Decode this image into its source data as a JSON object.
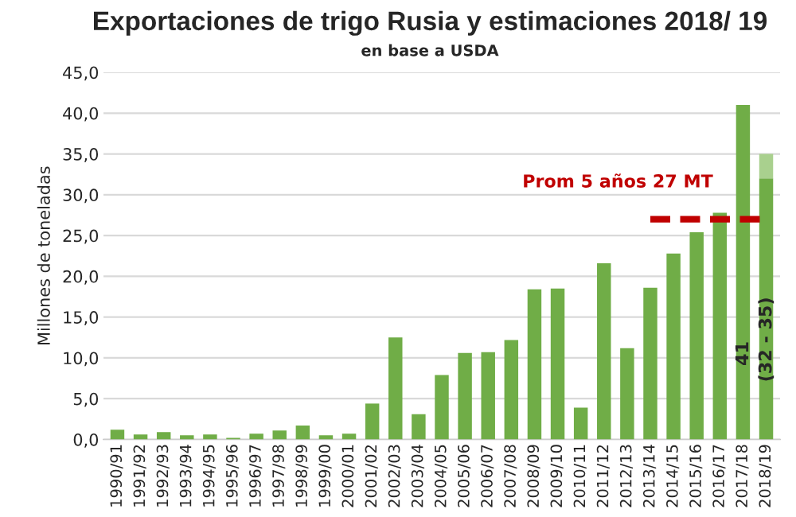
{
  "chart_data": {
    "type": "bar",
    "title": "Exportaciones de trigo Rusia y estimaciones 2018/ 19",
    "subtitle": "en base a USDA",
    "ylabel": "Millones de toneladas",
    "categories": [
      "1990/91",
      "1991/92",
      "1992/93",
      "1993/94",
      "1994/95",
      "1995/96",
      "1996/97",
      "1997/98",
      "1998/99",
      "1999/00",
      "2000/01",
      "2001/02",
      "2002/03",
      "2003/04",
      "2004/05",
      "2005/06",
      "2006/07",
      "2007/08",
      "2008/09",
      "2009/10",
      "2010/11",
      "2011/12",
      "2012/13",
      "2013/14",
      "2014/15",
      "2015/16",
      "2016/17",
      "2017/18",
      "2018/19"
    ],
    "stacked": true,
    "series": [
      {
        "color": "#70ad47",
        "values": [
          1.2,
          0.6,
          0.9,
          0.5,
          0.6,
          0.2,
          0.7,
          1.1,
          1.7,
          0.5,
          0.7,
          4.4,
          12.5,
          3.1,
          7.9,
          10.6,
          10.7,
          12.2,
          18.4,
          18.5,
          3.9,
          21.6,
          11.2,
          18.6,
          22.8,
          25.4,
          27.8,
          41,
          32
        ],
        "value_labels": [
          null,
          null,
          null,
          null,
          null,
          null,
          null,
          null,
          null,
          null,
          null,
          null,
          null,
          null,
          null,
          null,
          null,
          null,
          null,
          null,
          null,
          null,
          null,
          null,
          null,
          null,
          null,
          "41",
          "(32 - 35)"
        ]
      },
      {
        "color": "#a9d08e",
        "values": [
          null,
          null,
          null,
          null,
          null,
          null,
          null,
          null,
          null,
          null,
          null,
          null,
          null,
          null,
          null,
          null,
          null,
          null,
          null,
          null,
          null,
          null,
          null,
          null,
          null,
          null,
          null,
          null,
          3
        ]
      },
      {
        "type": "line",
        "color": "#c00000",
        "line_style": "dashed",
        "values": [
          null,
          null,
          null,
          null,
          null,
          null,
          null,
          null,
          null,
          null,
          null,
          null,
          null,
          null,
          null,
          null,
          null,
          null,
          null,
          null,
          null,
          null,
          null,
          27,
          27,
          27,
          27,
          27,
          27
        ]
      }
    ],
    "annotations": [
      "Prom 5 años 27 MT"
    ],
    "ylim": [
      0,
      45
    ],
    "yticks": [
      {
        "value": 0,
        "label": "0,0"
      },
      {
        "value": 5,
        "label": "5,0"
      },
      {
        "value": 10,
        "label": "10,0"
      },
      {
        "value": 15,
        "label": "15,0"
      },
      {
        "value": 20,
        "label": "20,0"
      },
      {
        "value": 25,
        "label": "25,0"
      },
      {
        "value": 30,
        "label": "30,0"
      },
      {
        "value": 35,
        "label": "35,0"
      },
      {
        "value": 40,
        "label": "40,0"
      },
      {
        "value": 45,
        "label": "45,0"
      }
    ],
    "grid": "y",
    "legend": false
  }
}
